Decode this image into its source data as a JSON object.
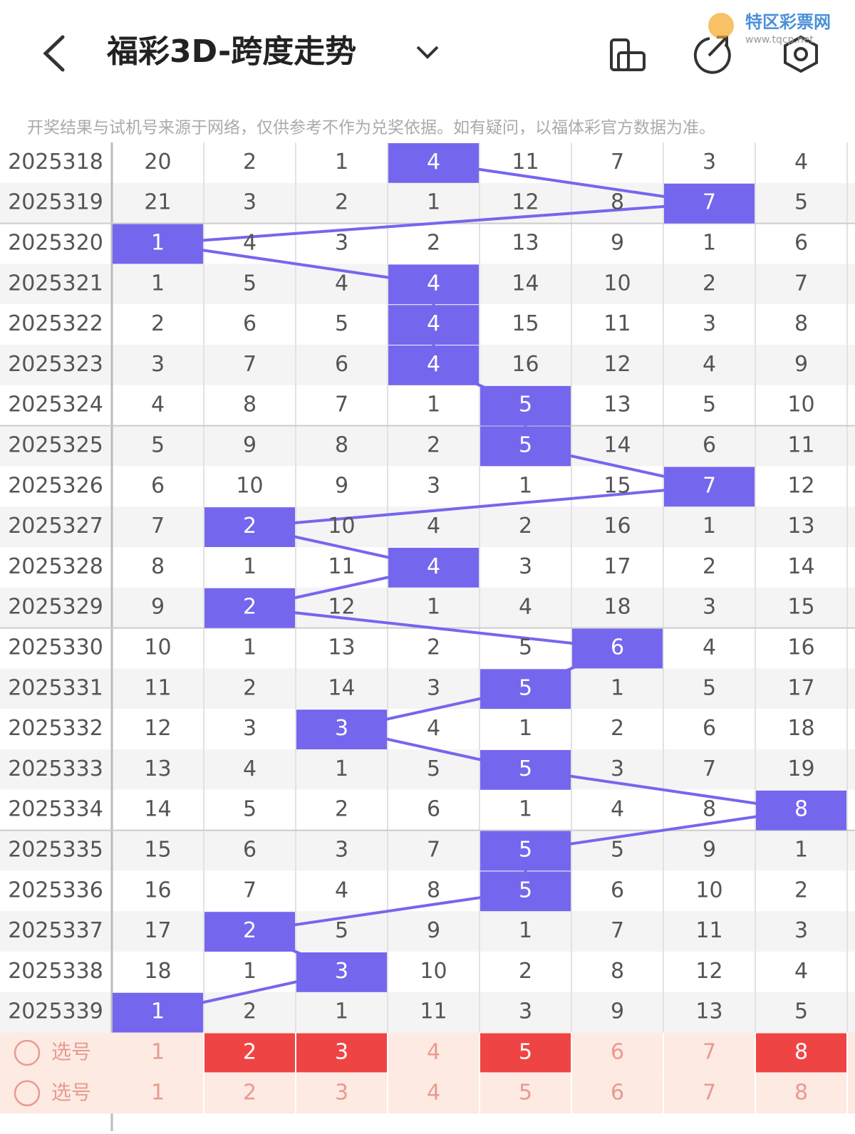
{
  "header": {
    "title": "福彩3D-跨度走势",
    "watermark": "特区彩票网",
    "watermark_url": "www.tqcp.net"
  },
  "notice": "开奖结果与试机号来源于网络，仅供参考不作为兑奖依据。如有疑问，以福体彩官方数据为准。",
  "table": {
    "rows": [
      {
        "issue": "2025318",
        "cells": [
          20,
          2,
          1,
          4,
          11,
          7,
          3,
          4
        ],
        "hit": 3
      },
      {
        "issue": "2025319",
        "cells": [
          21,
          3,
          2,
          1,
          12,
          8,
          7,
          5
        ],
        "hit": 6
      },
      {
        "issue": "2025320",
        "cells": [
          1,
          4,
          3,
          2,
          13,
          9,
          1,
          6
        ],
        "hit": 0
      },
      {
        "issue": "2025321",
        "cells": [
          1,
          5,
          4,
          4,
          14,
          10,
          2,
          7
        ],
        "hit": 3
      },
      {
        "issue": "2025322",
        "cells": [
          2,
          6,
          5,
          4,
          15,
          11,
          3,
          8
        ],
        "hit": 3
      },
      {
        "issue": "2025323",
        "cells": [
          3,
          7,
          6,
          4,
          16,
          12,
          4,
          9
        ],
        "hit": 3
      },
      {
        "issue": "2025324",
        "cells": [
          4,
          8,
          7,
          1,
          5,
          13,
          5,
          10
        ],
        "hit": 4
      },
      {
        "issue": "2025325",
        "cells": [
          5,
          9,
          8,
          2,
          5,
          14,
          6,
          11
        ],
        "hit": 4
      },
      {
        "issue": "2025326",
        "cells": [
          6,
          10,
          9,
          3,
          1,
          15,
          7,
          12
        ],
        "hit": 6
      },
      {
        "issue": "2025327",
        "cells": [
          7,
          2,
          10,
          4,
          2,
          16,
          1,
          13
        ],
        "hit": 1
      },
      {
        "issue": "2025328",
        "cells": [
          8,
          1,
          11,
          4,
          3,
          17,
          2,
          14
        ],
        "hit": 3
      },
      {
        "issue": "2025329",
        "cells": [
          9,
          2,
          12,
          1,
          4,
          18,
          3,
          15
        ],
        "hit": 1
      },
      {
        "issue": "2025330",
        "cells": [
          10,
          1,
          13,
          2,
          5,
          6,
          4,
          16
        ],
        "hit": 5
      },
      {
        "issue": "2025331",
        "cells": [
          11,
          2,
          14,
          3,
          5,
          1,
          5,
          17
        ],
        "hit": 4
      },
      {
        "issue": "2025332",
        "cells": [
          12,
          3,
          3,
          4,
          1,
          2,
          6,
          18
        ],
        "hit": 2
      },
      {
        "issue": "2025333",
        "cells": [
          13,
          4,
          1,
          5,
          5,
          3,
          7,
          19
        ],
        "hit": 4
      },
      {
        "issue": "2025334",
        "cells": [
          14,
          5,
          2,
          6,
          1,
          4,
          8,
          8
        ],
        "hit": 7
      },
      {
        "issue": "2025335",
        "cells": [
          15,
          6,
          3,
          7,
          5,
          5,
          9,
          1
        ],
        "hit": 4
      },
      {
        "issue": "2025336",
        "cells": [
          16,
          7,
          4,
          8,
          5,
          6,
          10,
          2
        ],
        "hit": 4
      },
      {
        "issue": "2025337",
        "cells": [
          17,
          2,
          5,
          9,
          1,
          7,
          11,
          3
        ],
        "hit": 1
      },
      {
        "issue": "2025338",
        "cells": [
          18,
          1,
          3,
          10,
          2,
          8,
          12,
          4
        ],
        "hit": 2
      },
      {
        "issue": "2025339",
        "cells": [
          1,
          2,
          1,
          11,
          3,
          9,
          13,
          5
        ],
        "hit": 0
      }
    ],
    "select": [
      {
        "label": "选号",
        "cells": [
          1,
          2,
          3,
          4,
          5,
          6,
          7,
          8
        ],
        "picked": [
          1,
          2,
          4,
          7
        ]
      },
      {
        "label": "选号",
        "cells": [
          1,
          2,
          3,
          4,
          5,
          6,
          7,
          8
        ],
        "picked": []
      }
    ]
  }
}
